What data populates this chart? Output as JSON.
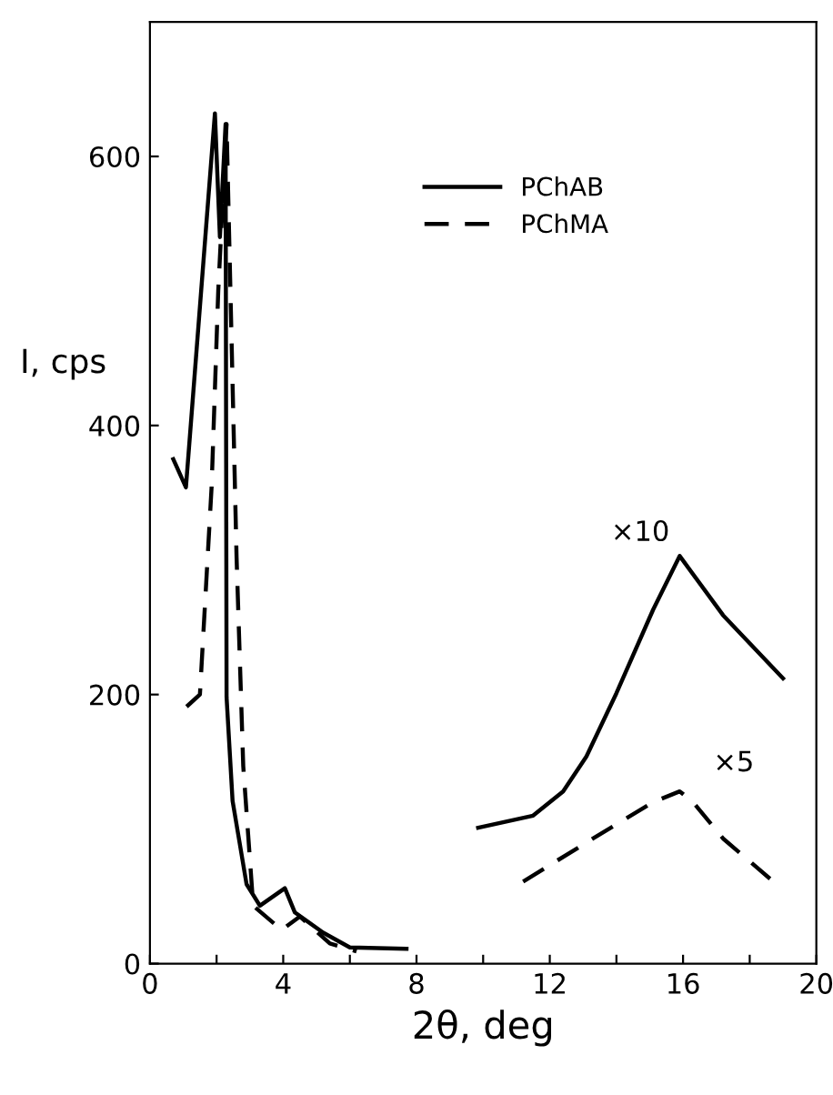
{
  "chart_data": {
    "type": "line",
    "xlabel": "2θ, deg",
    "ylabel": "I, cps",
    "xlim": [
      0,
      20
    ],
    "ylim": [
      0,
      700
    ],
    "xticks": [
      0,
      {
        "value": 2,
        "label": null
      },
      4,
      {
        "value": 6,
        "label": null
      },
      8,
      {
        "value": 10,
        "label": null
      },
      12,
      {
        "value": 14,
        "label": null
      },
      16,
      {
        "value": 18,
        "label": null
      },
      20
    ],
    "yticks": [
      0,
      200,
      400,
      600
    ],
    "grid": false,
    "legend": "top",
    "marker": "none",
    "series": [
      {
        "name": "PChAB",
        "color": "#000000",
        "line_style": "solid",
        "x": [
          0.7,
          1.08,
          1.95,
          2.1,
          2.27,
          2.3,
          2.48,
          2.9,
          3.3,
          4.05,
          4.35,
          5.2,
          6.0,
          7.7,
          null,
          9.85,
          11.5,
          12.4,
          13.1,
          14.0,
          15.1,
          15.9,
          17.2,
          19.0
        ],
        "values": [
          375,
          354,
          632,
          540,
          624,
          198,
          121,
          59,
          43,
          56,
          38,
          23,
          12,
          11,
          null,
          101,
          110,
          128,
          154,
          201,
          263,
          303,
          259,
          212
        ]
      },
      {
        "name": "PChMA",
        "color": "#000000",
        "line_style": "dashed",
        "x": [
          1.1,
          1.5,
          1.85,
          2.05,
          2.3,
          2.6,
          2.8,
          3.1,
          3.95,
          4.5,
          5.4,
          6.2,
          null,
          11.2,
          13.3,
          15.1,
          15.9,
          16.3,
          17.2,
          18.8
        ],
        "values": [
          191,
          200,
          354,
          500,
          624,
          302,
          147,
          43,
          25,
          35,
          15,
          9,
          null,
          61,
          93,
          120,
          128,
          120,
          93,
          59
        ]
      }
    ],
    "annotations": [
      {
        "text": "×10",
        "x": 15.9,
        "y": 303
      },
      {
        "text": "×5",
        "x": 16.3,
        "y": 128
      }
    ]
  }
}
